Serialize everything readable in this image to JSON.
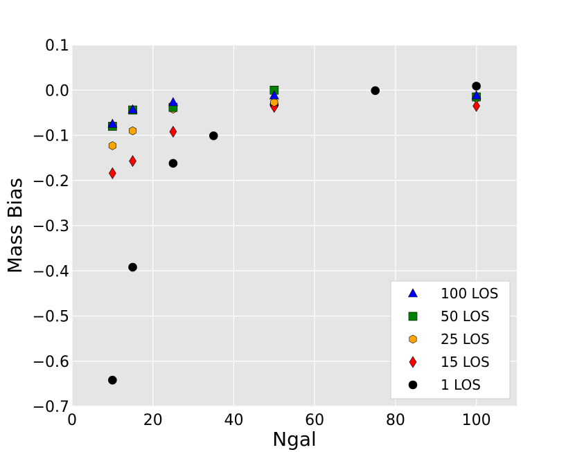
{
  "chart_data": {
    "type": "scatter",
    "title": "",
    "xlabel": "Ngal",
    "ylabel": "Mass Bias",
    "xlim": [
      0,
      110
    ],
    "ylim": [
      -0.7,
      0.1
    ],
    "grid": true,
    "legend_position": "lower-right",
    "x_ticks": [
      0,
      20,
      40,
      60,
      80,
      100
    ],
    "y_ticks": [
      0.1,
      0.0,
      -0.1,
      -0.2,
      -0.3,
      -0.4,
      -0.5,
      -0.6,
      -0.7
    ],
    "x_tick_labels": [
      "0",
      "20",
      "40",
      "60",
      "80",
      "100"
    ],
    "y_tick_labels": [
      "0.1",
      "0.0",
      "−0.1",
      "−0.2",
      "−0.3",
      "−0.4",
      "−0.5",
      "−0.6",
      "−0.7"
    ],
    "series": [
      {
        "name": "100 LOS",
        "marker": "triangle",
        "color": "#0000ff",
        "x": [
          10,
          15,
          25,
          50,
          100
        ],
        "y": [
          -0.075,
          -0.043,
          -0.027,
          -0.012,
          -0.012
        ]
      },
      {
        "name": "50 LOS",
        "marker": "square",
        "color": "#008000",
        "x": [
          10,
          15,
          25,
          50,
          100
        ],
        "y": [
          -0.08,
          -0.044,
          -0.038,
          0.0,
          -0.015
        ]
      },
      {
        "name": "25 LOS",
        "marker": "hexagon",
        "color": "#ffa500",
        "x": [
          10,
          15,
          25,
          50,
          100
        ],
        "y": [
          -0.123,
          -0.09,
          -0.042,
          -0.027,
          -0.018
        ]
      },
      {
        "name": "15 LOS",
        "marker": "diamond",
        "color": "#ff0000",
        "x": [
          10,
          15,
          25,
          50,
          100
        ],
        "y": [
          -0.184,
          -0.157,
          -0.092,
          -0.037,
          -0.035
        ]
      },
      {
        "name": "1 LOS",
        "marker": "circle",
        "color": "#000000",
        "x": [
          10,
          15,
          25,
          35,
          50,
          75,
          100
        ],
        "y": [
          -0.642,
          -0.392,
          -0.162,
          -0.101,
          -0.032,
          -0.001,
          0.009
        ]
      }
    ]
  }
}
